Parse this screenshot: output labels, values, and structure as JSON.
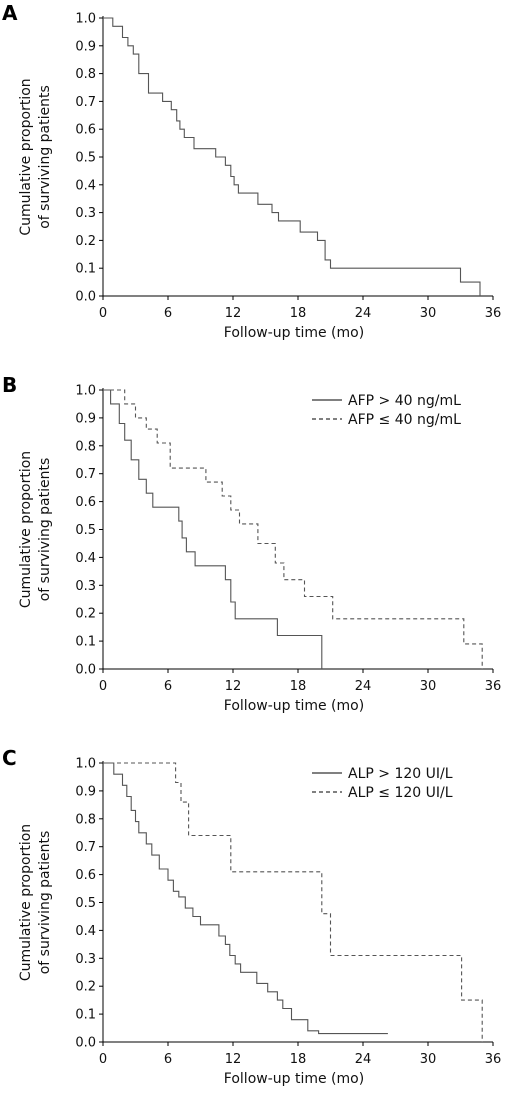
{
  "chart_data": [
    {
      "type": "line",
      "panel": "A",
      "xlabel": "Follow-up time (mo)",
      "ylabel": [
        "Cumulative proportion",
        "of surviving patients"
      ],
      "xlim": [
        0,
        36
      ],
      "ylim": [
        0,
        1
      ],
      "xticks": [
        "0",
        "6",
        "12",
        "18",
        "24",
        "30",
        "36"
      ],
      "yticks": [
        "0.0",
        "0.1",
        "0.2",
        "0.3",
        "0.4",
        "0.5",
        "0.6",
        "0.7",
        "0.8",
        "0.9",
        "1.0"
      ],
      "legend": [],
      "series": [
        {
          "color": "#555555",
          "dash": "",
          "x": [
            0,
            0.9,
            1.8,
            2.3,
            2.8,
            3.3,
            4.2,
            5.5,
            6.3,
            6.8,
            7.1,
            7.5,
            8.4,
            10.4,
            11.3,
            11.8,
            12.1,
            12.5,
            14.3,
            15.6,
            16.2,
            18.2,
            19.8,
            20.5,
            21.0,
            33.0,
            34.8
          ],
          "y": [
            1.0,
            0.97,
            0.93,
            0.9,
            0.87,
            0.8,
            0.73,
            0.7,
            0.67,
            0.63,
            0.6,
            0.57,
            0.53,
            0.5,
            0.47,
            0.43,
            0.4,
            0.37,
            0.33,
            0.3,
            0.27,
            0.23,
            0.2,
            0.13,
            0.1,
            0.05,
            0.0
          ]
        }
      ]
    },
    {
      "type": "line",
      "panel": "B",
      "xlabel": "Follow-up time (mo)",
      "ylabel": [
        "Cumulative proportion",
        "of surviving patients"
      ],
      "xlim": [
        0,
        36
      ],
      "ylim": [
        0,
        1
      ],
      "xticks": [
        "0",
        "6",
        "12",
        "18",
        "24",
        "30",
        "36"
      ],
      "yticks": [
        "0.0",
        "0.1",
        "0.2",
        "0.3",
        "0.4",
        "0.5",
        "0.6",
        "0.7",
        "0.8",
        "0.9",
        "1.0"
      ],
      "legend": [
        "AFP > 40 ng/mL",
        "AFP ≤ 40 ng/mL"
      ],
      "legend_position": "top-right",
      "series": [
        {
          "name": "AFP > 40 ng/mL",
          "color": "#555555",
          "dash": "",
          "x": [
            0,
            0.7,
            1.5,
            2.0,
            2.6,
            3.3,
            4.0,
            4.6,
            7.0,
            7.3,
            7.7,
            8.5,
            11.3,
            11.8,
            12.2,
            16.1,
            20.2
          ],
          "y": [
            1.0,
            0.95,
            0.88,
            0.82,
            0.75,
            0.68,
            0.63,
            0.58,
            0.53,
            0.47,
            0.42,
            0.37,
            0.32,
            0.24,
            0.18,
            0.12,
            0.0
          ]
        },
        {
          "name": "AFP ≤ 40 ng/mL",
          "color": "#555555",
          "dash": "4,3",
          "x": [
            0,
            2.0,
            3.0,
            4.0,
            5.0,
            6.2,
            7.2,
            9.5,
            11.0,
            11.8,
            12.6,
            14.3,
            15.9,
            16.7,
            18.6,
            21.2,
            33.3,
            35.0
          ],
          "y": [
            1.0,
            0.95,
            0.9,
            0.86,
            0.81,
            0.72,
            0.72,
            0.67,
            0.62,
            0.57,
            0.52,
            0.45,
            0.38,
            0.32,
            0.26,
            0.18,
            0.09,
            0.0
          ]
        }
      ]
    },
    {
      "type": "line",
      "panel": "C",
      "xlabel": "Follow-up time (mo)",
      "ylabel": [
        "Cumulative proportion",
        "of surviving patients"
      ],
      "xlim": [
        0,
        36
      ],
      "ylim": [
        0,
        1
      ],
      "xticks": [
        "0",
        "6",
        "12",
        "18",
        "24",
        "30",
        "36"
      ],
      "yticks": [
        "0.0",
        "0.1",
        "0.2",
        "0.3",
        "0.4",
        "0.5",
        "0.6",
        "0.7",
        "0.8",
        "0.9",
        "1.0"
      ],
      "legend": [
        "ALP > 120 UI/L",
        "ALP ≤ 120 UI/L"
      ],
      "legend_position": "top-right",
      "series": [
        {
          "name": "ALP > 120 UI/L",
          "color": "#555555",
          "dash": "",
          "x": [
            0,
            1.0,
            1.8,
            2.2,
            2.6,
            3.0,
            3.3,
            4.0,
            4.5,
            5.2,
            6.0,
            6.5,
            7.0,
            7.6,
            8.3,
            9.0,
            10.7,
            11.3,
            11.7,
            12.2,
            12.7,
            14.2,
            15.2,
            16.1,
            16.6,
            17.4,
            18.9,
            19.9,
            26.3
          ],
          "y": [
            1.0,
            0.96,
            0.92,
            0.88,
            0.83,
            0.79,
            0.75,
            0.71,
            0.67,
            0.62,
            0.58,
            0.54,
            0.52,
            0.48,
            0.45,
            0.42,
            0.38,
            0.35,
            0.31,
            0.28,
            0.25,
            0.21,
            0.18,
            0.15,
            0.12,
            0.08,
            0.04,
            0.03,
            0.03
          ]
        },
        {
          "name": "ALP ≤ 120 UI/L",
          "color": "#555555",
          "dash": "4,3",
          "x": [
            0,
            6.7,
            7.2,
            7.9,
            11.8,
            20.2,
            21.0,
            33.1,
            35.0
          ],
          "y": [
            1.0,
            0.93,
            0.86,
            0.74,
            0.61,
            0.46,
            0.31,
            0.15,
            0.0
          ]
        }
      ]
    }
  ]
}
